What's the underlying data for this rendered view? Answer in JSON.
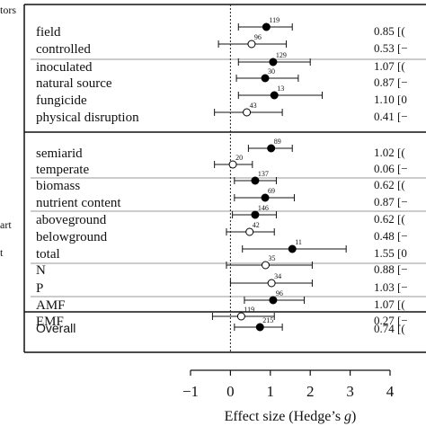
{
  "chart_data": {
    "type": "forest",
    "xlabel": "Effect size (Hedge’s g)",
    "xlim": [
      -1,
      4
    ],
    "xticks": [
      -1,
      0,
      1,
      2,
      3,
      4
    ],
    "xtick_labels": [
      "−1",
      "0",
      "1",
      "2",
      "3",
      "4"
    ],
    "reference_line_x": 0,
    "side_labels": [
      "tors",
      "art",
      "t"
    ],
    "value_text_note": "values at right edge are cropped after the first digits",
    "rows": [
      {
        "label": "field",
        "n": "119",
        "estimate": 0.9,
        "ci": [
          0.2,
          1.55
        ],
        "filled": true,
        "value_text": "0.85 [",
        "value_tail": "("
      },
      {
        "label": "controlled",
        "n": "96",
        "estimate": 0.53,
        "ci": [
          -0.3,
          1.4
        ],
        "filled": false,
        "value_text": "0.53 [",
        "value_tail": "−"
      },
      {
        "label": "inoculated",
        "n": "129",
        "estimate": 1.07,
        "ci": [
          0.2,
          2.0
        ],
        "filled": true,
        "value_text": "1.07 [",
        "value_tail": "("
      },
      {
        "label": "natural source",
        "n": "30",
        "estimate": 0.87,
        "ci": [
          0.15,
          1.7
        ],
        "filled": true,
        "value_text": "0.87 [",
        "value_tail": "−"
      },
      {
        "label": "fungicide",
        "n": "13",
        "estimate": 1.1,
        "ci": [
          0.2,
          2.3
        ],
        "filled": true,
        "value_text": "1.10 [",
        "value_tail": "0"
      },
      {
        "label": "physical disruption",
        "n": "43",
        "estimate": 0.41,
        "ci": [
          -0.4,
          1.3
        ],
        "filled": false,
        "value_text": "0.41 [",
        "value_tail": "−"
      },
      {
        "label": "semiarid",
        "n": "89",
        "estimate": 1.02,
        "ci": [
          0.45,
          1.55
        ],
        "filled": true,
        "value_text": "1.02 [",
        "value_tail": "("
      },
      {
        "label": "temperate",
        "n": "20",
        "estimate": 0.06,
        "ci": [
          -0.4,
          0.55
        ],
        "filled": false,
        "value_text": "0.06 [",
        "value_tail": "−"
      },
      {
        "label": "biomass",
        "n": "137",
        "estimate": 0.62,
        "ci": [
          0.1,
          1.15
        ],
        "filled": true,
        "value_text": "0.62 [",
        "value_tail": "("
      },
      {
        "label": "nutrient content",
        "n": "69",
        "estimate": 0.87,
        "ci": [
          0.1,
          1.6
        ],
        "filled": true,
        "value_text": "0.87 [",
        "value_tail": "−"
      },
      {
        "label": "aboveground",
        "n": "146",
        "estimate": 0.62,
        "ci": [
          0.05,
          1.15
        ],
        "filled": true,
        "value_text": "0.62 [",
        "value_tail": "("
      },
      {
        "label": "belowground",
        "n": "42",
        "estimate": 0.48,
        "ci": [
          -0.1,
          1.1
        ],
        "filled": false,
        "value_text": "0.48 [",
        "value_tail": "−"
      },
      {
        "label": "total",
        "n": "11",
        "estimate": 1.55,
        "ci": [
          0.3,
          2.9
        ],
        "filled": true,
        "value_text": "1.55 [",
        "value_tail": "0"
      },
      {
        "label": "N",
        "n": "35",
        "estimate": 0.88,
        "ci": [
          -0.1,
          2.05
        ],
        "filled": false,
        "value_text": "0.88 [",
        "value_tail": "−"
      },
      {
        "label": "P",
        "n": "34",
        "estimate": 1.03,
        "ci": [
          0.0,
          2.05
        ],
        "filled": false,
        "value_text": "1.03 [",
        "value_tail": "−"
      },
      {
        "label": "AMF",
        "n": "96",
        "estimate": 1.07,
        "ci": [
          0.35,
          1.85
        ],
        "filled": true,
        "value_text": "1.07 [",
        "value_tail": "("
      },
      {
        "label": "EMF",
        "n": "119",
        "estimate": 0.27,
        "ci": [
          -0.45,
          1.1
        ],
        "filled": false,
        "value_text": "0.27 [",
        "value_tail": "−"
      },
      {
        "label": "Overall",
        "n": "215",
        "estimate": 0.74,
        "ci": [
          0.1,
          1.3
        ],
        "filled": true,
        "value_text": "0.74 [",
        "value_tail": "(",
        "overall": true
      }
    ]
  }
}
